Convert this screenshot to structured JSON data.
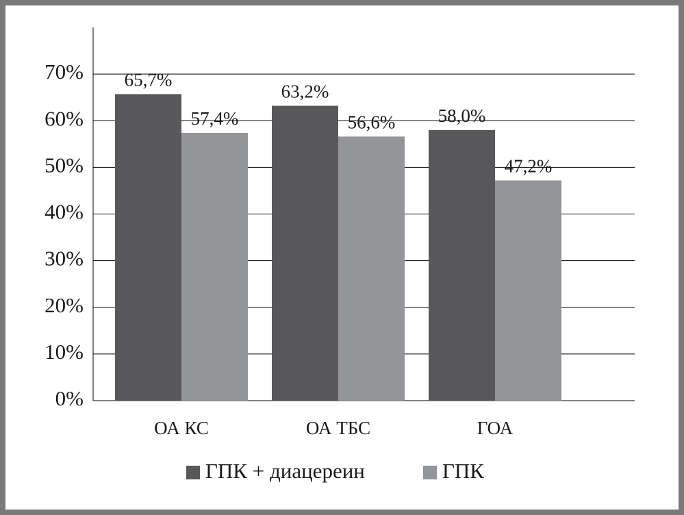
{
  "chart_data": {
    "type": "bar",
    "categories": [
      "ОА КС",
      "ОА ТБС",
      "ГОА"
    ],
    "series": [
      {
        "name": "ГПК + диацереин",
        "color": "#58585a",
        "values": [
          65.7,
          63.2,
          58.0
        ],
        "value_labels": [
          "65,7%",
          "63,2%",
          "58,0%"
        ]
      },
      {
        "name": "ГПК",
        "color": "#939598",
        "values": [
          57.4,
          56.6,
          47.2
        ],
        "value_labels": [
          "57,4%",
          "56,6%",
          "47,2%"
        ]
      }
    ],
    "ylim": [
      0,
      80
    ],
    "yticks": [
      {
        "value": 0,
        "label": "0%"
      },
      {
        "value": 10,
        "label": "10%"
      },
      {
        "value": 20,
        "label": "20%"
      },
      {
        "value": 30,
        "label": "30%"
      },
      {
        "value": 40,
        "label": "40%"
      },
      {
        "value": 50,
        "label": "50%"
      },
      {
        "value": 60,
        "label": "60%"
      },
      {
        "value": 70,
        "label": "70%"
      }
    ],
    "grid": true,
    "legend": "bottom"
  }
}
